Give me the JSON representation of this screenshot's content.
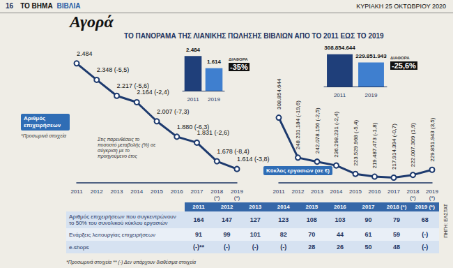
{
  "header": {
    "page": "16",
    "paper": "ΤΟ ΒΗΜΑ",
    "section": "ΒΙΒΛΙΑ",
    "date": "ΚΥΡΙΑΚΗ 25 ΟΚΤΩΒΡΙΟΥ 2020"
  },
  "section_title": "Αγορά",
  "title": "ΤΟ ΠΑΝΟΡΑΜΑ ΤΗΣ ΛΙΑΝΙΚΗΣ ΠΩΛΗΣΗΣ ΒΙΒΛΙΩΝ ΑΠΟ ΤΟ 2011 ΕΩΣ ΤΟ 2019",
  "chart_data": [
    {
      "type": "line",
      "title": "Αριθμός επιχειρήσεων",
      "annotations": [
        "*Προσωρινά στοιχεία",
        "Στις παρενθέσεις το ποσοστό μεταβολής (%) σε σύγκριση με το προηγούμενο έτος"
      ],
      "categories": [
        "2011",
        "2012",
        "2013",
        "2014",
        "2015",
        "2016",
        "2017",
        "2018 (*)",
        "2019 (*)"
      ],
      "values": [
        2484,
        2348,
        2217,
        2164,
        2007,
        1880,
        1831,
        1678,
        1614
      ],
      "value_labels": [
        "2.484",
        "2.348 (-5,5)",
        "2.217 (-5,6)",
        "2.164 (-2,4)",
        "2.007 (-7,3)",
        "1.880 (-6,3)",
        "1.831 (-2,6)",
        "1.678 (-8,4)",
        "1.614 (-3,8)"
      ],
      "color": "#1d3a6e",
      "marker": "circle",
      "line_style": "solid",
      "ylim": [
        1500,
        2500
      ],
      "yticks": [
        1500,
        2000,
        2500
      ],
      "grid": false,
      "tick_labels": "x",
      "data_labels": true
    },
    {
      "type": "bar",
      "annotations": [
        "ΔΙΑΦΟΡΑ",
        "-35%"
      ],
      "categories": [
        "2011",
        "2019"
      ],
      "values": [
        2484,
        1614
      ],
      "value_labels": [
        "2.484",
        "1.614"
      ],
      "colors": [
        "#1f3f7a",
        "#3f7fcf"
      ],
      "ylim": [
        0,
        2500
      ],
      "yticks": [
        0,
        2500
      ],
      "grid": false,
      "tick_labels": "x",
      "data_labels": true
    },
    {
      "type": "line",
      "title": "Κύκλος εργασιών (σε €)",
      "categories": [
        "2011",
        "2012",
        "2013",
        "2014",
        "2015",
        "2016",
        "2017",
        "2018 (*)",
        "2019 (*)"
      ],
      "values": [
        308854644,
        248231184,
        242078156,
        236298231,
        223529968,
        219487473,
        217914394,
        222007309,
        229851943
      ],
      "value_labels": [
        "308.854.644",
        "248.231.184 (-19,6)",
        "242.078.156 (-2,5)",
        "236.298.231 (-2,4)",
        "223.529.968 (-5,4)",
        "219.487.473 (-1,8)",
        "217.914.394 (-0,7)",
        "222.007.309 (1,9)",
        "229.851.943 (3,5)"
      ],
      "color": "#1d3a6e",
      "marker": "circle",
      "line_style": "solid",
      "ylim": [
        210000000,
        320000000
      ],
      "yticks": [
        210000000,
        320000000
      ],
      "grid": false,
      "tick_labels": "x",
      "data_labels": true
    },
    {
      "type": "bar",
      "annotations": [
        "ΔΙΑΦΟΡΑ",
        "-25,6%"
      ],
      "categories": [
        "2011",
        "2019"
      ],
      "values": [
        308854644,
        229851943
      ],
      "value_labels": [
        "308.854.644",
        "229.851.943"
      ],
      "colors": [
        "#1f3f7a",
        "#3f7fcf"
      ],
      "ylim": [
        0,
        320000000
      ],
      "yticks": [
        0,
        320000000
      ],
      "grid": false,
      "tick_labels": "x",
      "data_labels": true
    }
  ],
  "table": {
    "columns": [
      "2011",
      "2012",
      "2013",
      "2014",
      "2015",
      "2016",
      "2017",
      "2018 (*)",
      "2019 (*)"
    ],
    "rows": [
      {
        "label": "Αριθμός επιχειρήσεων που συγκεντρώνουν το 50% του συνολικού κύκλου εργασιών",
        "cells": [
          164,
          147,
          127,
          123,
          108,
          103,
          90,
          79,
          68
        ]
      },
      {
        "label": "Ενάρξεις λειτουργίας επιχειρήσεων",
        "cells": [
          91,
          99,
          101,
          82,
          70,
          44,
          61,
          59,
          "(-)"
        ]
      },
      {
        "label": "e-shops",
        "cells": [
          "(-)**",
          "(-)",
          "(-)",
          "(-)",
          28,
          26,
          50,
          48,
          "(-)"
        ]
      }
    ]
  },
  "footnote": "*Προσωρινά στοιχεία ** (-) Δεν υπάρχουν διαθέσιμα στοιχεία",
  "source": "ΠΗΓΗ: ΕΛΣΤΑΤ"
}
